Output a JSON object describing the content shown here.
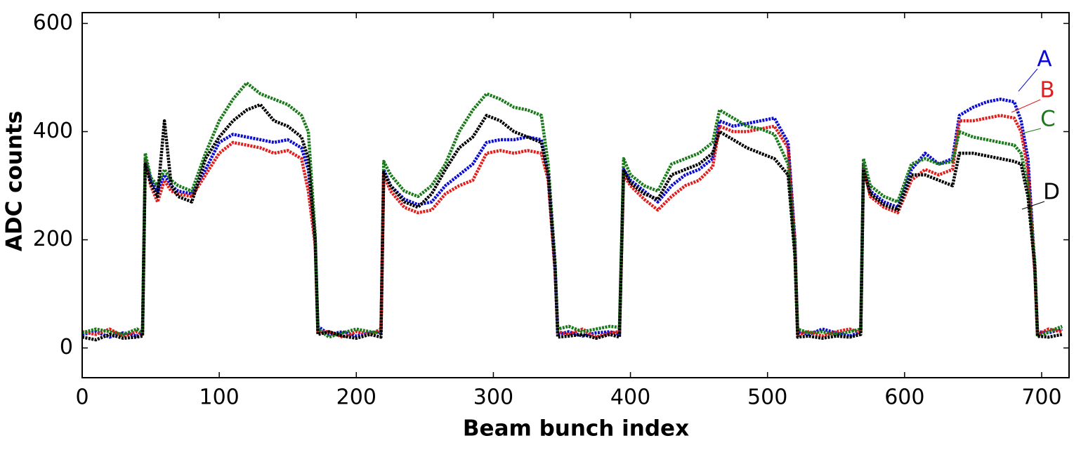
{
  "chart_data": {
    "type": "line",
    "xlabel": "Beam bunch index",
    "ylabel": "ADC counts",
    "xlim": [
      0,
      720
    ],
    "ylim": [
      -55,
      620
    ],
    "xticks": [
      0,
      100,
      200,
      300,
      400,
      500,
      600,
      700
    ],
    "yticks": [
      0,
      200,
      400,
      600
    ],
    "x": [
      0,
      10,
      20,
      30,
      40,
      44,
      46,
      50,
      55,
      60,
      65,
      70,
      80,
      90,
      100,
      110,
      120,
      130,
      140,
      150,
      160,
      165,
      170,
      172,
      180,
      190,
      200,
      210,
      218,
      220,
      225,
      235,
      245,
      255,
      265,
      275,
      285,
      295,
      305,
      315,
      325,
      335,
      340,
      345,
      347,
      355,
      365,
      375,
      385,
      392,
      395,
      400,
      410,
      420,
      430,
      440,
      450,
      460,
      465,
      475,
      485,
      495,
      505,
      515,
      520,
      522,
      530,
      540,
      550,
      560,
      568,
      570,
      575,
      585,
      595,
      605,
      615,
      625,
      635,
      640,
      650,
      660,
      670,
      680,
      685,
      690,
      695,
      697,
      705,
      715
    ],
    "series": [
      {
        "name": "A",
        "color": "#0a0ad0",
        "values": [
          25,
          30,
          20,
          28,
          22,
          30,
          350,
          310,
          290,
          320,
          300,
          290,
          285,
          330,
          380,
          395,
          390,
          385,
          380,
          385,
          370,
          330,
          200,
          40,
          25,
          30,
          22,
          28,
          30,
          330,
          300,
          275,
          265,
          270,
          300,
          320,
          340,
          380,
          385,
          385,
          390,
          385,
          320,
          150,
          25,
          30,
          22,
          28,
          30,
          25,
          330,
          310,
          290,
          270,
          300,
          320,
          330,
          350,
          420,
          410,
          415,
          420,
          425,
          380,
          200,
          30,
          25,
          35,
          28,
          22,
          30,
          340,
          290,
          270,
          260,
          330,
          360,
          340,
          350,
          430,
          445,
          455,
          460,
          455,
          420,
          350,
          150,
          30,
          28,
          35
        ]
      },
      {
        "name": "B",
        "color": "#e01e1e",
        "values": [
          30,
          25,
          35,
          22,
          30,
          25,
          345,
          300,
          270,
          310,
          290,
          285,
          280,
          320,
          360,
          380,
          375,
          370,
          360,
          365,
          350,
          290,
          190,
          30,
          30,
          20,
          30,
          25,
          35,
          320,
          290,
          260,
          250,
          255,
          285,
          300,
          310,
          360,
          365,
          360,
          365,
          360,
          310,
          140,
          30,
          25,
          35,
          20,
          28,
          30,
          320,
          300,
          275,
          255,
          280,
          300,
          310,
          335,
          410,
          400,
          400,
          405,
          410,
          370,
          190,
          25,
          30,
          22,
          30,
          35,
          28,
          335,
          280,
          260,
          250,
          310,
          330,
          320,
          330,
          420,
          420,
          425,
          430,
          425,
          400,
          330,
          140,
          25,
          35,
          30
        ]
      },
      {
        "name": "C",
        "color": "#1a7a1a",
        "values": [
          28,
          35,
          30,
          25,
          35,
          28,
          360,
          315,
          300,
          330,
          310,
          300,
          290,
          360,
          420,
          460,
          490,
          470,
          460,
          450,
          430,
          400,
          210,
          35,
          20,
          28,
          35,
          30,
          28,
          345,
          320,
          290,
          280,
          300,
          340,
          400,
          440,
          470,
          460,
          445,
          440,
          430,
          340,
          160,
          35,
          40,
          30,
          35,
          40,
          38,
          350,
          320,
          300,
          290,
          340,
          350,
          360,
          380,
          440,
          425,
          410,
          405,
          395,
          340,
          180,
          35,
          28,
          30,
          25,
          30,
          35,
          350,
          300,
          280,
          270,
          340,
          350,
          340,
          345,
          400,
          390,
          385,
          380,
          375,
          360,
          300,
          160,
          20,
          30,
          40
        ]
      },
      {
        "name": "D",
        "color": "#000000",
        "values": [
          20,
          15,
          25,
          18,
          20,
          22,
          340,
          305,
          280,
          420,
          300,
          280,
          270,
          350,
          390,
          420,
          440,
          450,
          420,
          410,
          390,
          350,
          200,
          25,
          30,
          22,
          18,
          25,
          20,
          325,
          300,
          270,
          260,
          285,
          330,
          370,
          390,
          430,
          420,
          400,
          390,
          380,
          320,
          150,
          20,
          22,
          25,
          18,
          25,
          20,
          330,
          305,
          285,
          275,
          320,
          330,
          340,
          360,
          400,
          385,
          370,
          360,
          350,
          320,
          170,
          20,
          22,
          18,
          22,
          20,
          25,
          330,
          285,
          265,
          255,
          320,
          320,
          310,
          300,
          360,
          360,
          355,
          350,
          345,
          340,
          280,
          150,
          22,
          20,
          25
        ]
      }
    ]
  }
}
